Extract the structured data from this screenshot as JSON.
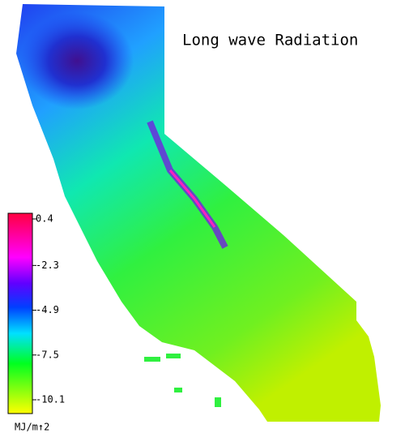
{
  "title": "Long wave Radiation",
  "colorbar": {
    "range": [
      -10.1,
      0.4
    ],
    "ticks": [
      0.4,
      -2.3,
      -4.9,
      -7.5,
      -10.1
    ],
    "unit": "MJ/m↑2"
  }
}
